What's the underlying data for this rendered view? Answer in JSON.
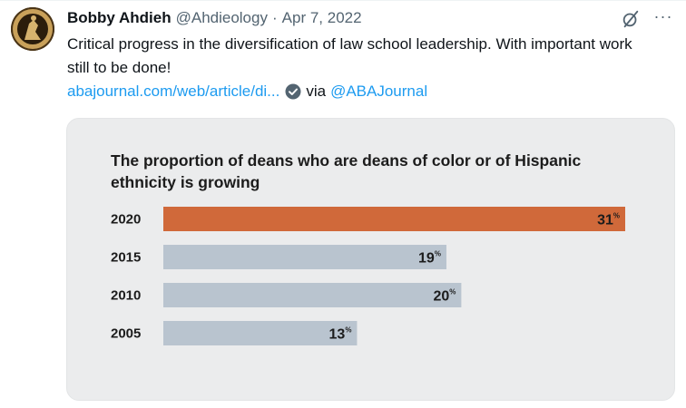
{
  "tweet": {
    "author_name": "Bobby Ahdieh",
    "handle": "@Ahdieology",
    "separator": "·",
    "date": "Apr 7, 2022",
    "text": "Critical progress in the diversification of law school leadership. With important work still to be done!",
    "link_text": "abajournal.com/web/article/di...",
    "via_text": "via",
    "via_handle": "@ABAJournal",
    "more_glyph": "···",
    "icons": {
      "avatar": "avatar",
      "grok": "grok-icon",
      "more": "more-icon",
      "verified": "check-circle-icon"
    }
  },
  "colors": {
    "accent_link": "#1d9bf0",
    "bar_highlight": "#d0693a",
    "bar_default": "#b9c4cf",
    "card_bg": "#ebeced"
  },
  "chart_data": {
    "type": "bar",
    "orientation": "horizontal",
    "title": "The proportion of deans who are deans of color or of Hispanic ethnicity is growing",
    "categories": [
      "2020",
      "2015",
      "2010",
      "2005"
    ],
    "values": [
      31,
      19,
      20,
      13
    ],
    "value_suffix": "%",
    "highlight_category": "2020",
    "xlim": [
      0,
      31
    ]
  }
}
